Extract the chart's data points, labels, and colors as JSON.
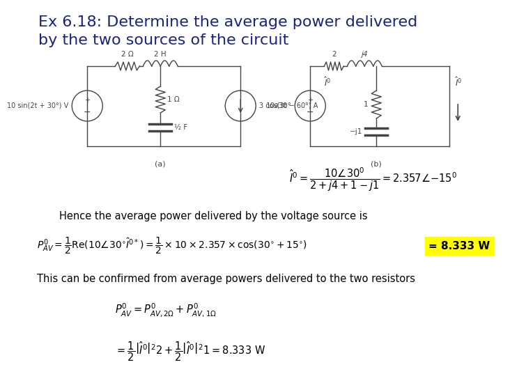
{
  "title_line1": "Ex 6.18: Determine the average power delivered",
  "title_line2": "by the two sources of the circuit",
  "title_color": "#1a237e",
  "title_fontsize": 16,
  "bg_color": "#ffffff",
  "text_color": "#000000",
  "circuit_color": "#444444",
  "highlight_color": "#ffff00",
  "highlight_text": "= 8.333 W",
  "text_hence": "Hence the average power delivered by the voltage source is",
  "text_confirmed": "This can be confirmed from average powers delivered to the two resistors",
  "formula_eq1_a": "$P^{\\prime}_{AV} = \\dfrac{1}{2}\\mathrm{Re}(10\\angle 30^{\\circ}\\hat{I}^{\\prime*}) = \\dfrac{1}{2}\\times 10\\times 2.357\\times\\cos(30^{\\circ}+15^{\\circ})$",
  "formula_eq2": "$\\hat{I}^{\\prime} = \\dfrac{10\\angle 30^{0}}{2+j4+1-j1} = 2.357\\angle{-15^{0}}$",
  "formula_eq3": "$P^{\\prime}_{AV} = P^{\\prime}_{AV,2\\Omega} + P^{\\prime}_{AV,1\\Omega}$",
  "formula_eq4": "$= \\dfrac{1}{2}\\left|\\hat{I}^{\\prime}\\right|^{2}2 + \\dfrac{1}{2}\\left|\\hat{I}^{\\prime}\\right|^{2}1 = 8.333\\ \\mathrm{W}$",
  "circ_a_label": "(a)",
  "circ_b_label": "(b)",
  "label_2ohm": "2 Ω",
  "label_2H": "2 H",
  "label_1ohm": "1 Ω",
  "label_halfF": "½ F",
  "label_vs_a": "10 sin(2t + 30°) V",
  "label_cs_a": "3 cos(3t − 60°) A",
  "label_2": "2",
  "label_j4": "j4",
  "label_1": "1",
  "label_mj1": "−j1",
  "label_vs_b": "10∂30°",
  "circuit_fontsize": 7.5,
  "text_fontsize": 10.5,
  "formula_fontsize": 10.5
}
